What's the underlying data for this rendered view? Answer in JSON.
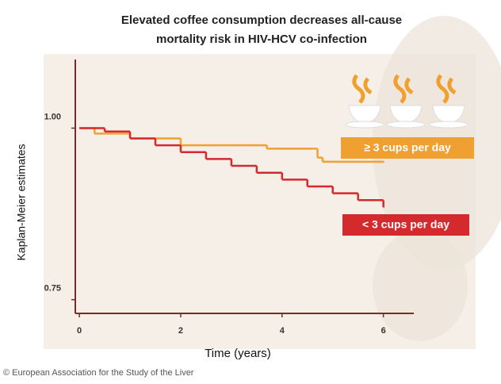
{
  "chart_data": {
    "type": "step",
    "title": [
      "Elevated coffee consumption decreases all-cause",
      "mortality risk in HIV-HCV co-infection"
    ],
    "x_label": "Time (years)",
    "y_label": "Kaplan-Meier estimates",
    "source": "© European Association for the Study of the Liver",
    "xlim": [
      -0.08,
      6.6
    ],
    "ylim": [
      0.73,
      1.1
    ],
    "xticks": [
      0,
      2,
      4,
      6
    ],
    "yticks": [
      {
        "value": 1.0,
        "label": "1.00"
      },
      {
        "value": 0.75,
        "label": "0.75"
      }
    ],
    "series": [
      {
        "name": "≥ 3 cups per day",
        "color": "#f0a030",
        "x": [
          0,
          0.3,
          1.0,
          2.0,
          3.7,
          4.7,
          4.8,
          6.0
        ],
        "values": [
          1.0,
          0.992,
          0.985,
          0.975,
          0.97,
          0.957,
          0.951,
          0.951
        ]
      },
      {
        "name": "< 3 cups per day",
        "color": "#d42a2e",
        "x": [
          0,
          0.5,
          1.0,
          1.5,
          2.0,
          2.5,
          3.0,
          3.5,
          4.0,
          4.5,
          5.0,
          5.5,
          6.0
        ],
        "values": [
          1.0,
          0.995,
          0.985,
          0.975,
          0.965,
          0.955,
          0.945,
          0.935,
          0.925,
          0.915,
          0.905,
          0.895,
          0.885
        ]
      }
    ]
  }
}
